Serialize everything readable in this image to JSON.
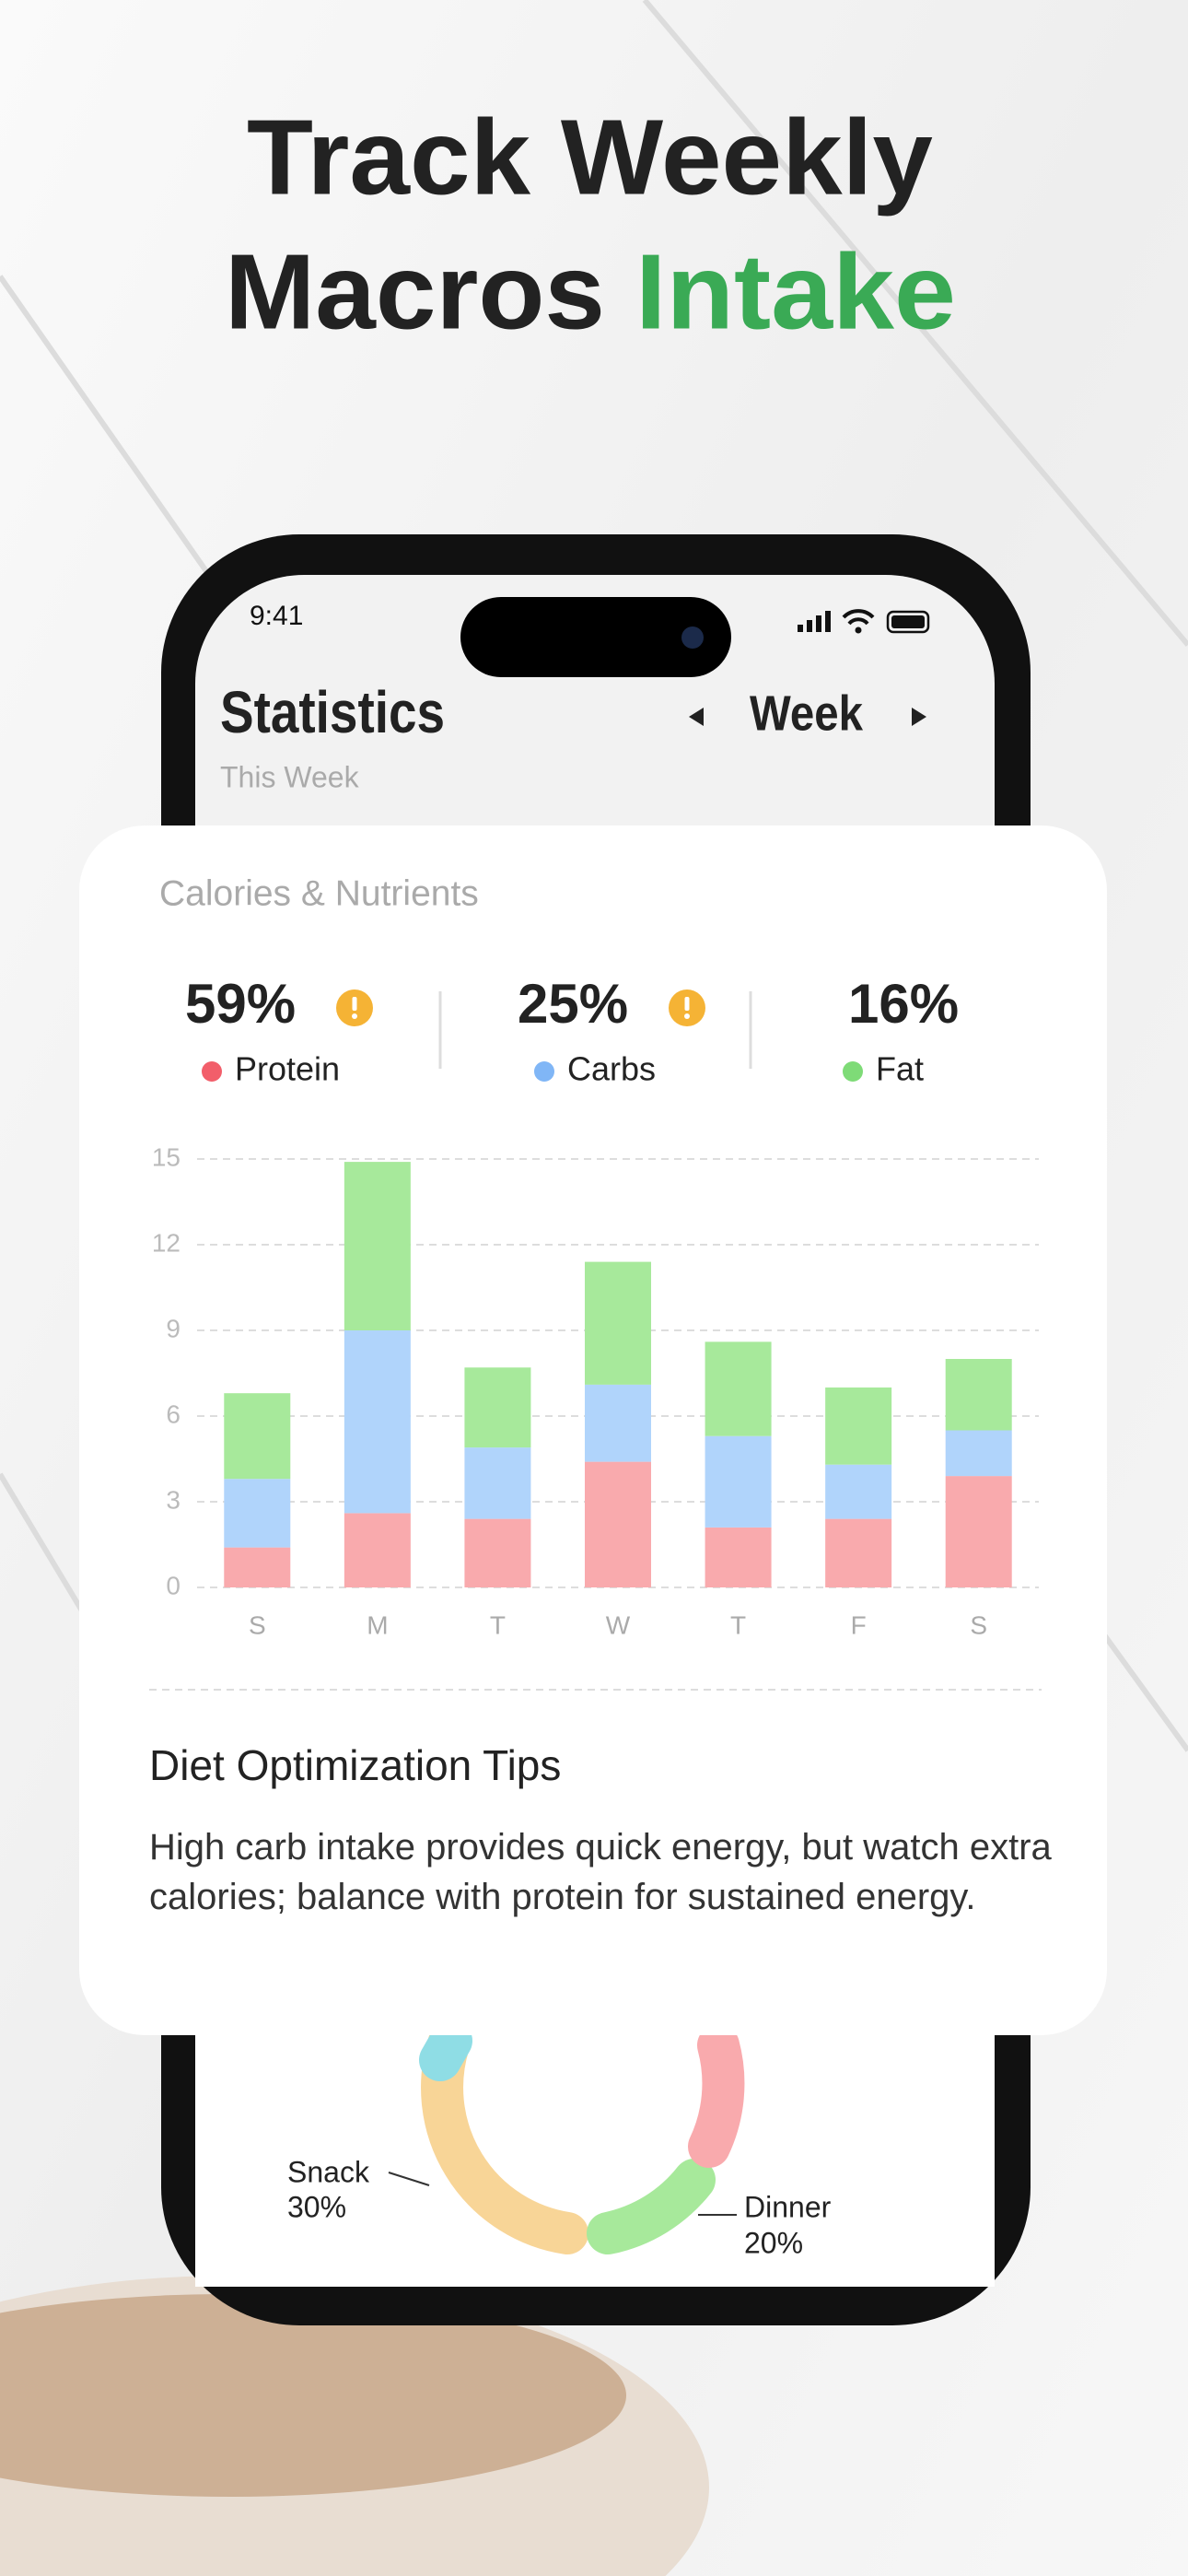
{
  "header": {
    "title_line1": "Track Weekly",
    "title_line2_a": "Macros",
    "title_line2_b": "Intake"
  },
  "status_bar": {
    "time": "9:41"
  },
  "app_header": {
    "title": "Statistics",
    "subtitle": "This Week",
    "period": "Week"
  },
  "card": {
    "title": "Calories & Nutrients",
    "summary": [
      "59%",
      "25%",
      "16%"
    ],
    "tips_title": "Diet Optimization Tips",
    "tips_text": "High carb intake provides quick energy, but watch extra calories; balance with protein for sustained energy."
  },
  "chart_data": {
    "type": "bar",
    "stacked": true,
    "categories": [
      "S",
      "M",
      "T",
      "W",
      "T",
      "F",
      "S"
    ],
    "series": [
      {
        "name": "Protein",
        "color": "#f9aaad",
        "marker_color": "#f25e6a",
        "values": [
          1.4,
          2.6,
          2.4,
          4.4,
          2.1,
          2.4,
          3.9
        ]
      },
      {
        "name": "Carbs",
        "color": "#b0d4fb",
        "marker_color": "#80b6f6",
        "values": [
          2.4,
          6.4,
          2.5,
          2.7,
          3.2,
          1.9,
          1.6
        ]
      },
      {
        "name": "Fat",
        "color": "#a7e99b",
        "marker_color": "#7edb77",
        "values": [
          3.0,
          5.9,
          2.8,
          4.3,
          3.3,
          2.7,
          2.5
        ]
      }
    ],
    "ylim": [
      0,
      15
    ],
    "yticks": [
      0,
      3,
      6,
      9,
      12,
      15
    ],
    "grid": true
  },
  "donut_labels": [
    {
      "name": "Snack",
      "percent": "30%"
    },
    {
      "name": "Dinner",
      "percent": "20%"
    }
  ]
}
